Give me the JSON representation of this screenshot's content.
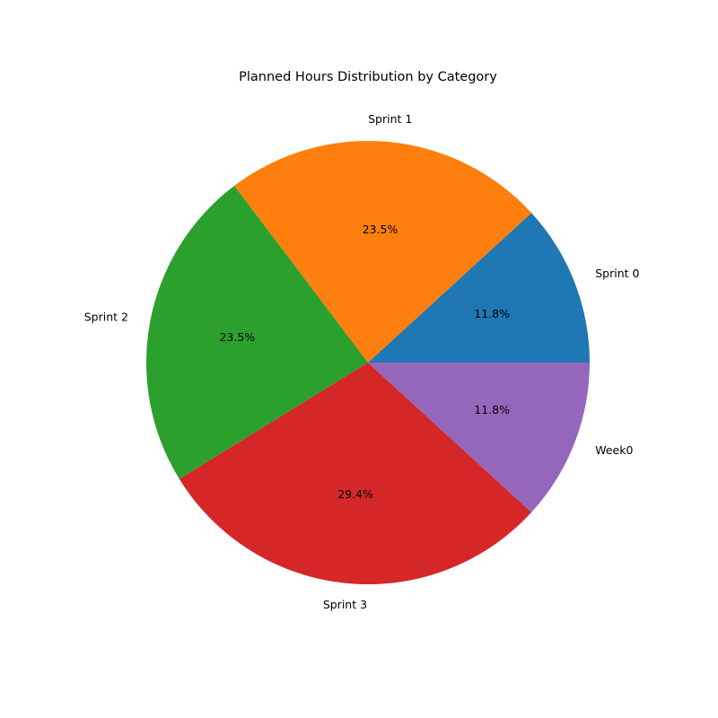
{
  "chart_data": {
    "type": "pie",
    "title": "Planned Hours Distribution by Category",
    "categories": [
      "Sprint 0",
      "Sprint 1",
      "Sprint 2",
      "Sprint 3",
      "Week0"
    ],
    "values": [
      11.8,
      23.5,
      23.5,
      29.4,
      11.8
    ],
    "value_labels": [
      "11.8%",
      "23.5%",
      "23.5%",
      "29.4%",
      "11.8%"
    ],
    "colors": [
      "#1f77b4",
      "#ff7f0e",
      "#2ca02c",
      "#d62728",
      "#9467bd"
    ],
    "start_angle_deg": 0,
    "direction": "counterclockwise",
    "legend": "none",
    "grid": false
  }
}
